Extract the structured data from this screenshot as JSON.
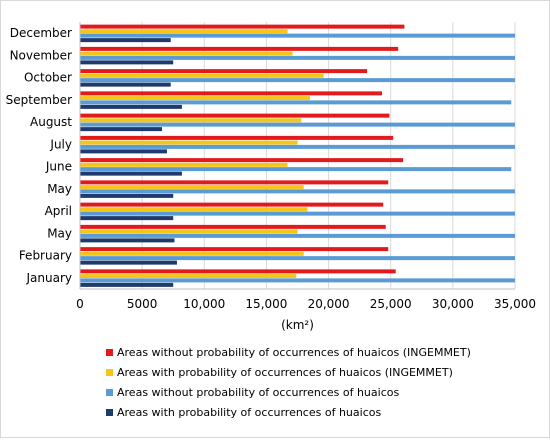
{
  "chart_data": {
    "type": "bar",
    "orientation": "horizontal",
    "categories": [
      "January",
      "February",
      "May",
      "April",
      "May",
      "June",
      "July",
      "August",
      "September",
      "October",
      "November",
      "December"
    ],
    "series": [
      {
        "name": "Areas without probability of occurrences of huaicos  (INGEMMET)",
        "color": "#e31a1c",
        "values": [
          25400,
          24800,
          24600,
          24400,
          24800,
          26000,
          25200,
          24900,
          24300,
          23100,
          25600,
          26100
        ]
      },
      {
        "name": "Areas with probability of occurrences of huaicos  (INGEMMET)",
        "color": "#f5c518",
        "values": [
          17400,
          18000,
          17500,
          18300,
          18000,
          16700,
          17500,
          17800,
          18500,
          19600,
          17100,
          16700
        ]
      },
      {
        "name": "Areas without probability of occurrences of huaicos",
        "color": "#5b9bd5",
        "values": [
          35000,
          35000,
          35000,
          35000,
          35000,
          34700,
          35000,
          35000,
          34700,
          35000,
          35000,
          35000
        ]
      },
      {
        "name": "Areas with probability of occurrences of huaicos",
        "color": "#1f3a6e",
        "values": [
          7500,
          7800,
          7600,
          7500,
          7500,
          8200,
          7000,
          6600,
          8200,
          7300,
          7500,
          7300
        ]
      }
    ],
    "xlim": [
      0,
      35000
    ],
    "xticks": [
      0,
      5000,
      10000,
      15000,
      20000,
      25000,
      30000,
      35000
    ],
    "xtick_labels": [
      "0",
      "5000",
      "10,000",
      "15,000",
      "20,000",
      "25,000",
      "30,000",
      "35,000"
    ],
    "xlabel": "(km²)",
    "grid": "vertical",
    "legend_position": "bottom"
  }
}
